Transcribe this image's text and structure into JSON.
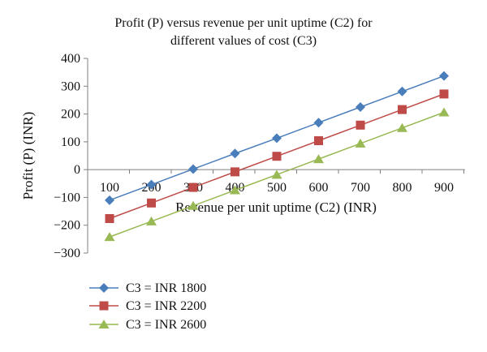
{
  "chart_data": {
    "type": "line",
    "title_line1": "Profit (P) versus revenue per unit uptime (C2) for",
    "title_line2": "different values of cost (C3)",
    "xlabel": "Revenue per unit uptime (C2) (INR)",
    "ylabel": "Profit (P) (INR)",
    "x": [
      100,
      200,
      300,
      400,
      500,
      600,
      700,
      800,
      900
    ],
    "ylim": [
      -300,
      400
    ],
    "yticks": [
      400,
      300,
      200,
      100,
      0,
      -100,
      -200,
      -300
    ],
    "ytick_labels": [
      "400",
      "300",
      "200",
      "100",
      "0",
      "−100",
      "−200",
      "−300"
    ],
    "grid": false,
    "legend_position": "bottom-left",
    "series": [
      {
        "name": "C3 = INR 1800",
        "color": "#4a7ebb",
        "marker": "diamond",
        "values": [
          -110,
          -54,
          2,
          58,
          113,
          169,
          225,
          281,
          337
        ]
      },
      {
        "name": "C3 = INR 2200",
        "color": "#be4b48",
        "marker": "square",
        "values": [
          -176,
          -120,
          -64,
          -8,
          48,
          104,
          160,
          216,
          272
        ]
      },
      {
        "name": "C3 = INR 2600",
        "color": "#98b954",
        "marker": "triangle",
        "values": [
          -242,
          -186,
          -130,
          -74,
          -18,
          38,
          94,
          150,
          206
        ]
      }
    ]
  }
}
